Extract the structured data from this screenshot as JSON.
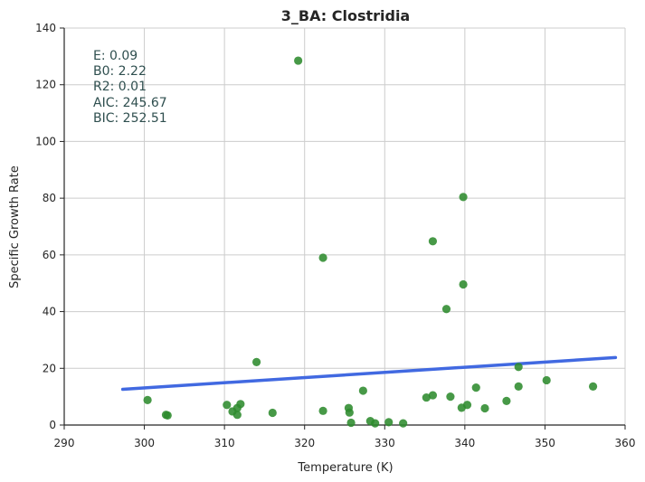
{
  "chart_data": {
    "type": "scatter",
    "title": "3_BA: Clostridia",
    "xlabel": "Temperature (K)",
    "ylabel": "Specific Growth Rate",
    "xlim": [
      290,
      360
    ],
    "ylim": [
      0,
      140
    ],
    "xticks": [
      290,
      300,
      310,
      320,
      330,
      340,
      350,
      360
    ],
    "yticks": [
      0,
      20,
      40,
      60,
      80,
      100,
      120,
      140
    ],
    "grid": true,
    "point_color": "#2e8b2e",
    "line_color": "#4169e1",
    "series": [
      {
        "type": "scatter",
        "points": [
          [
            300.4,
            8.8
          ],
          [
            302.7,
            3.6
          ],
          [
            302.9,
            3.4
          ],
          [
            310.3,
            7.1
          ],
          [
            311.0,
            4.8
          ],
          [
            311.6,
            3.6
          ],
          [
            311.6,
            6.0
          ],
          [
            312.0,
            7.4
          ],
          [
            314.0,
            22.2
          ],
          [
            316.0,
            4.3
          ],
          [
            319.2,
            128.5
          ],
          [
            322.3,
            59.0
          ],
          [
            322.3,
            5.0
          ],
          [
            325.5,
            6.0
          ],
          [
            325.6,
            4.4
          ],
          [
            325.8,
            0.8
          ],
          [
            327.3,
            12.1
          ],
          [
            328.2,
            1.4
          ],
          [
            328.8,
            0.6
          ],
          [
            330.5,
            1.0
          ],
          [
            332.3,
            0.6
          ],
          [
            335.2,
            9.7
          ],
          [
            336.0,
            10.5
          ],
          [
            336.0,
            64.8
          ],
          [
            337.7,
            40.9
          ],
          [
            338.2,
            10.0
          ],
          [
            339.6,
            6.1
          ],
          [
            339.8,
            80.4
          ],
          [
            339.8,
            49.6
          ],
          [
            340.3,
            7.1
          ],
          [
            341.4,
            13.2
          ],
          [
            342.5,
            5.9
          ],
          [
            345.2,
            8.5
          ],
          [
            346.7,
            20.5
          ],
          [
            346.7,
            13.6
          ],
          [
            350.2,
            15.8
          ],
          [
            356.0,
            13.6
          ]
        ]
      },
      {
        "type": "line",
        "x": [
          297.3,
          358.8
        ],
        "y": [
          12.6,
          23.8
        ]
      }
    ]
  },
  "stats": {
    "e": "E:  0.09",
    "b0": "B0:  2.22",
    "r2": "R2:  0.01",
    "aic": "AIC: 245.67",
    "bic": "BIC: 252.51"
  }
}
